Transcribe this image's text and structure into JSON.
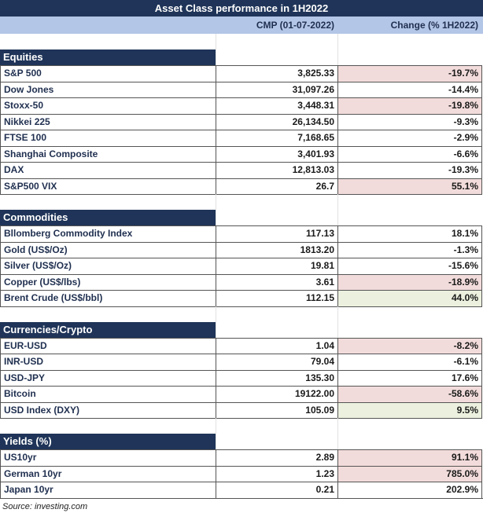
{
  "title": "Asset Class performance in 1H2022",
  "headers": {
    "cmp": "CMP (01-07-2022)",
    "change": "Change (% 1H2022)"
  },
  "sections": [
    {
      "name": "Equities",
      "rows": [
        {
          "label": "S&P 500",
          "cmp": "3,825.33",
          "change": "-19.7%",
          "highlight": "neg"
        },
        {
          "label": "Dow Jones",
          "cmp": "31,097.26",
          "change": "-14.4%",
          "highlight": ""
        },
        {
          "label": "Stoxx-50",
          "cmp": "3,448.31",
          "change": "-19.8%",
          "highlight": "neg"
        },
        {
          "label": "Nikkei 225",
          "cmp": "26,134.50",
          "change": "-9.3%",
          "highlight": ""
        },
        {
          "label": "FTSE 100",
          "cmp": "7,168.65",
          "change": "-2.9%",
          "highlight": ""
        },
        {
          "label": "Shanghai Composite",
          "cmp": "3,401.93",
          "change": "-6.6%",
          "highlight": ""
        },
        {
          "label": "DAX",
          "cmp": "12,813.03",
          "change": "-19.3%",
          "highlight": ""
        },
        {
          "label": "S&P500 VIX",
          "cmp": "26.7",
          "change": "55.1%",
          "highlight": "neg"
        }
      ]
    },
    {
      "name": "Commodities",
      "rows": [
        {
          "label": "Bllomberg Commodity Index",
          "cmp": "117.13",
          "change": "18.1%",
          "highlight": ""
        },
        {
          "label": "Gold (US$/Oz)",
          "cmp": "1813.20",
          "change": "-1.3%",
          "highlight": ""
        },
        {
          "label": "Silver (US$/Oz)",
          "cmp": "19.81",
          "change": "-15.6%",
          "highlight": ""
        },
        {
          "label": "Copper (US$/lbs)",
          "cmp": "3.61",
          "change": "-18.9%",
          "highlight": "neg"
        },
        {
          "label": "Brent Crude (US$/bbl)",
          "cmp": "112.15",
          "change": "44.0%",
          "highlight": "pos"
        }
      ]
    },
    {
      "name": "Currencies/Crypto",
      "rows": [
        {
          "label": "EUR-USD",
          "cmp": "1.04",
          "change": "-8.2%",
          "highlight": "neg"
        },
        {
          "label": "INR-USD",
          "cmp": "79.04",
          "change": "-6.1%",
          "highlight": ""
        },
        {
          "label": "USD-JPY",
          "cmp": "135.30",
          "change": "17.6%",
          "highlight": ""
        },
        {
          "label": "Bitcoin",
          "cmp": "19122.00",
          "change": "-58.6%",
          "highlight": "neg"
        },
        {
          "label": "USD Index (DXY)",
          "cmp": "105.09",
          "change": "9.5%",
          "highlight": "pos"
        }
      ]
    },
    {
      "name": "Yields (%)",
      "rows": [
        {
          "label": "US10yr",
          "cmp": "2.89",
          "change": "91.1%",
          "highlight": "neg"
        },
        {
          "label": "German 10yr",
          "cmp": "1.23",
          "change": "785.0%",
          "highlight": "neg"
        },
        {
          "label": "Japan 10yr",
          "cmp": "0.21",
          "change": "202.9%",
          "highlight": ""
        }
      ]
    }
  ],
  "source": "Source: investing.com"
}
